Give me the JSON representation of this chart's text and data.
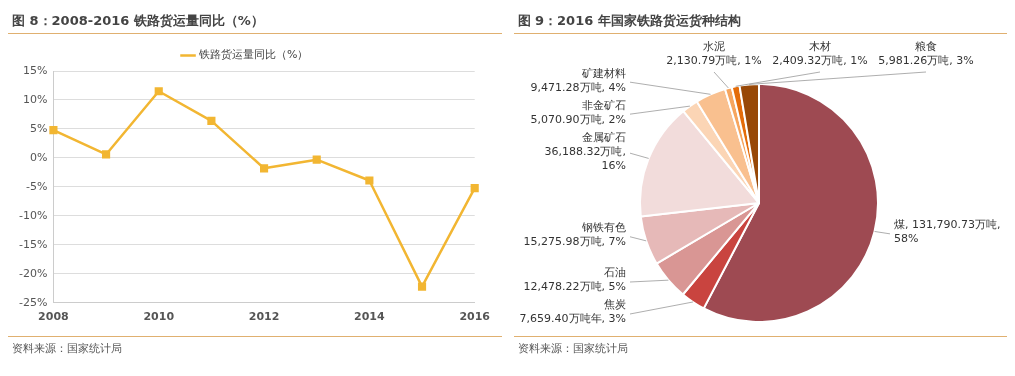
{
  "chart_data": [
    {
      "type": "line",
      "title": "图 8：2008-2016 铁路货运量同比（%）",
      "categories": [
        "2008",
        null,
        "2010",
        null,
        "2012",
        null,
        "2014",
        null,
        "2016"
      ],
      "series": [
        {
          "name": "铁路货运量同比（%）",
          "color": "#f2b632",
          "values": [
            4.8,
            0.6,
            11.5,
            6.4,
            -1.8,
            -0.3,
            -3.9,
            -22.2,
            -5.2
          ]
        }
      ],
      "ylim": [
        -25,
        15
      ],
      "yticks": [
        {
          "value": -25,
          "label": "-25%"
        },
        {
          "value": -20,
          "label": "-20%"
        },
        {
          "value": -15,
          "label": "-15%"
        },
        {
          "value": -10,
          "label": "-10%"
        },
        {
          "value": -5,
          "label": "-5%"
        },
        {
          "value": 0,
          "label": "0%"
        },
        {
          "value": 5,
          "label": "5%"
        },
        {
          "value": 10,
          "label": "10%"
        },
        {
          "value": 15,
          "label": "15%"
        }
      ],
      "grid": "y",
      "legend": "top",
      "marker": "square",
      "line_style": "solid",
      "annotations": [
        "资料来源：国家统计局"
      ]
    },
    {
      "type": "pie",
      "title": "图 9：2016 年国家铁路货运货种结构",
      "categories": [
        "煤",
        "焦炭",
        "石油",
        "钢铁有色",
        "金属矿石",
        "非金矿石",
        "矿建材料",
        "水泥",
        "木材",
        "粮食"
      ],
      "values": [
        131790.73,
        7659.4,
        12478.22,
        15275.98,
        36188.32,
        5070.9,
        9471.28,
        2130.79,
        2409.32,
        5981.26
      ],
      "colors": [
        "#9e4a52",
        "#c9443f",
        "#d99694",
        "#e6b9b8",
        "#f2dcdb",
        "#fbd5b5",
        "#f9c08f",
        "#f6a55e",
        "#e46c0a",
        "#984807"
      ],
      "value_labels": [
        "131,790.73万吨, 58%",
        "7,659.40万吨年, 3%",
        "12,478.22万吨, 5%",
        "15,275.98万吨, 7%",
        "36,188.32万吨, 16%",
        "5,070.90万吨, 2%",
        "9,471.28万吨, 4%",
        "2,130.79万吨, 1%",
        "2,409.32万吨, 1%",
        "5,981.26万吨, 3%"
      ],
      "legend": false,
      "annotations": [
        "资料来源：国家统计局"
      ]
    }
  ]
}
